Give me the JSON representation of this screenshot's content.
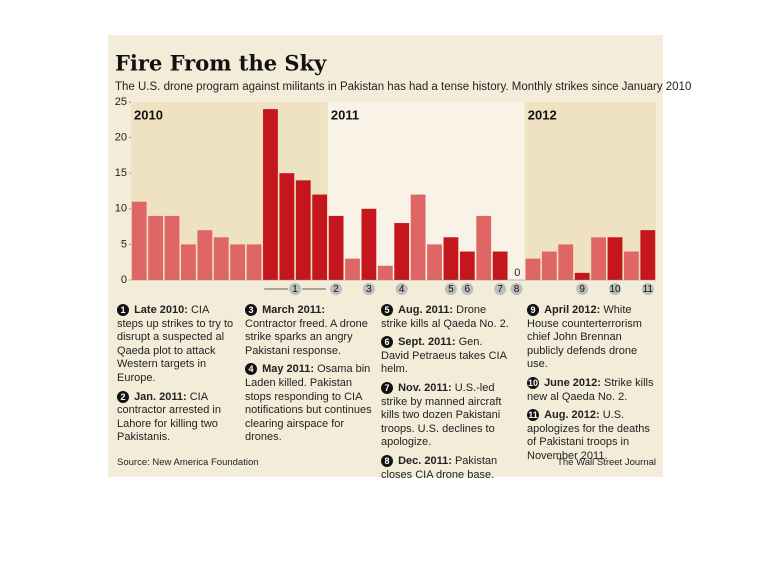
{
  "chart_data": {
    "type": "bar",
    "title": "Fire From the Sky",
    "subtitle": "The U.S. drone program against militants in Pakistan has had a tense history. Monthly strikes since January 2010",
    "categories": [
      null,
      null,
      null,
      null,
      null,
      null,
      null,
      null,
      null,
      null,
      null,
      null,
      null,
      null,
      null,
      null,
      null,
      null,
      null,
      null,
      null,
      null,
      null,
      null,
      null,
      null,
      null,
      null,
      null,
      null,
      null,
      null
    ],
    "values": [
      11,
      9,
      9,
      5,
      7,
      6,
      5,
      5,
      24,
      15,
      14,
      12,
      9,
      3,
      10,
      2,
      8,
      12,
      5,
      6,
      4,
      9,
      4,
      0,
      3,
      4,
      5,
      1,
      6,
      6,
      4,
      7
    ],
    "colors": [
      "#e06666",
      "#e06666",
      "#e06666",
      "#e06666",
      "#e06666",
      "#e06666",
      "#e06666",
      "#e06666",
      "#c4161c",
      "#c4161c",
      "#c4161c",
      "#c4161c",
      "#c4161c",
      "#e06666",
      "#c4161c",
      "#e06666",
      "#c4161c",
      "#e06666",
      "#e06666",
      "#c4161c",
      "#c4161c",
      "#e06666",
      "#c4161c",
      "#c4161c",
      "#e06666",
      "#e06666",
      "#e06666",
      "#c4161c",
      "#e06666",
      "#c4161c",
      "#e06666",
      "#c4161c"
    ],
    "groups": [
      {
        "label": "2010",
        "count": 12,
        "color": "#efe2c2"
      },
      {
        "label": "2011",
        "count": 12,
        "color": "#f8f3e6"
      },
      {
        "label": "2012",
        "count": 8,
        "color": "#efe2c2"
      }
    ],
    "markers": [
      {
        "label": "1",
        "from": 8,
        "to": 11
      },
      {
        "label": "2",
        "from": 12,
        "to": 12
      },
      {
        "label": "3",
        "from": 14,
        "to": 14
      },
      {
        "label": "4",
        "from": 16,
        "to": 16
      },
      {
        "label": "5",
        "from": 19,
        "to": 19
      },
      {
        "label": "6",
        "from": 20,
        "to": 20
      },
      {
        "label": "7",
        "from": 22,
        "to": 22
      },
      {
        "label": "8",
        "from": 23,
        "to": 23
      },
      {
        "label": "9",
        "from": 27,
        "to": 27
      },
      {
        "label": "10",
        "from": 29,
        "to": 29
      },
      {
        "label": "11",
        "from": 31,
        "to": 31
      }
    ],
    "ylim": [
      0,
      25
    ],
    "yticks": [
      0,
      5,
      10,
      15,
      20,
      25
    ],
    "grid": false
  },
  "notes": [
    {
      "num": "1",
      "head": "Late 2010:",
      "text": "CIA steps up strikes to try to disrupt a suspected al Qaeda plot to attack Western targets in Europe."
    },
    {
      "num": "2",
      "head": "Jan. 2011:",
      "text": "CIA contractor arrested in Lahore for killing two Pakistanis."
    },
    {
      "num": "3",
      "head": "March 2011:",
      "text": "Contractor freed. A drone strike sparks an angry Pakistani response."
    },
    {
      "num": "4",
      "head": "May 2011:",
      "text": "Osama bin Laden killed. Pakistan stops responding to CIA notifications but continues clearing airspace for drones."
    },
    {
      "num": "5",
      "head": "Aug. 2011:",
      "text": "Drone strike kills al Qaeda No. 2."
    },
    {
      "num": "6",
      "head": "Sept. 2011:",
      "text": "Gen. David Petraeus takes CIA helm."
    },
    {
      "num": "7",
      "head": "Nov. 2011:",
      "text": "U.S.-led strike by manned aircraft kills two dozen Pakistani troops. U.S. declines to apologize."
    },
    {
      "num": "8",
      "head": "Dec. 2011:",
      "text": "Pakistan closes CIA drone base."
    },
    {
      "num": "9",
      "head": "April 2012:",
      "text": "White House counterterrorism chief John Brennan publicly defends drone use."
    },
    {
      "num": "10",
      "head": "June 2012:",
      "text": "Strike kills new al Qaeda No. 2."
    },
    {
      "num": "11",
      "head": "Aug. 2012:",
      "text": "U.S. apologizes for the deaths of Pakistani troops in November 2011."
    }
  ],
  "source": "Source: New America Foundation",
  "credit": "The Wall Street Journal"
}
